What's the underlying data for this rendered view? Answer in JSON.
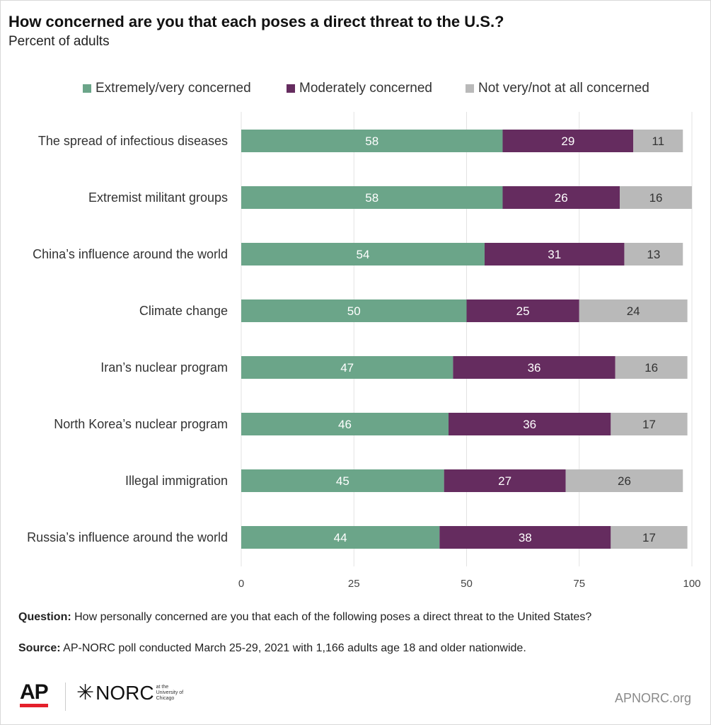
{
  "header": {
    "title": "How concerned are you that each poses a direct threat to the U.S.?",
    "subtitle": "Percent of adults"
  },
  "chart_data": {
    "type": "bar",
    "orientation": "horizontal",
    "stacked": true,
    "categories": [
      "The spread of infectious diseases",
      "Extremist militant groups",
      "China’s influence around the world",
      "Climate change",
      "Iran’s nuclear program",
      "North Korea’s nuclear program",
      "Illegal immigration",
      "Russia’s influence around the world"
    ],
    "series": [
      {
        "name": "Extremely/very concerned",
        "color": "#6ba589",
        "values": [
          58,
          58,
          54,
          50,
          47,
          46,
          45,
          44
        ]
      },
      {
        "name": "Moderately concerned",
        "color": "#652c5f",
        "values": [
          29,
          26,
          31,
          25,
          36,
          36,
          27,
          38
        ]
      },
      {
        "name": "Not very/not at all concerned",
        "color": "#b9b9b9",
        "values": [
          11,
          16,
          13,
          24,
          16,
          17,
          26,
          17
        ]
      }
    ],
    "xlim": [
      0,
      100
    ],
    "xticks": [
      0,
      25,
      50,
      75,
      100
    ],
    "grid": true,
    "legend_position": "top-right"
  },
  "notes": {
    "question_label": "Question:",
    "question_text": "How personally concerned are you that each of the following poses a direct threat to the United States?",
    "source_label": "Source:",
    "source_text": "AP-NORC poll conducted March 25-29, 2021 with 1,166 adults age 18 and older nationwide."
  },
  "footer": {
    "ap_logo": "AP",
    "norc_logo": "NORC",
    "norc_sub": "at the University of Chicago",
    "site": "APNORC.org"
  }
}
